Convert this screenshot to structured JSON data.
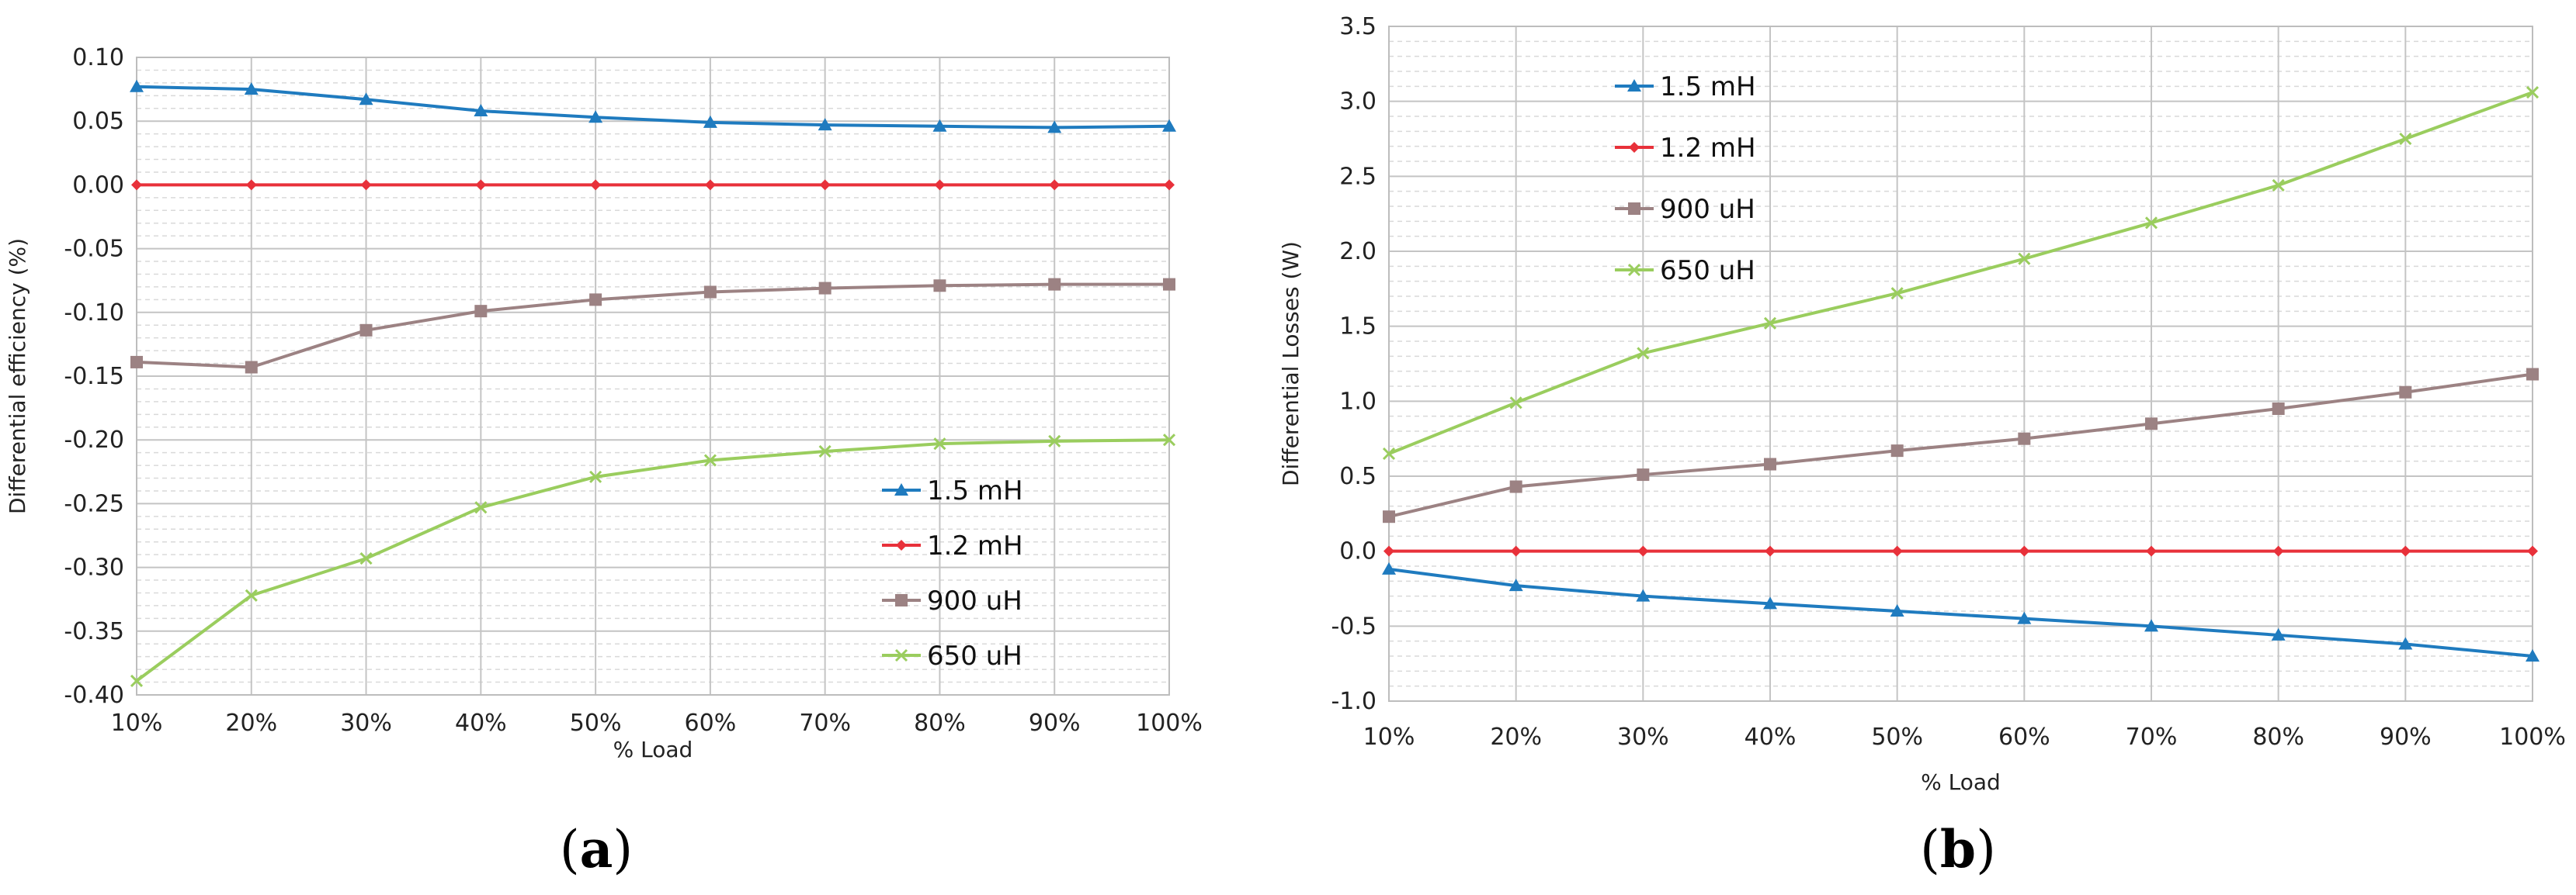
{
  "chart_data": [
    {
      "type": "line",
      "panel_label": "a",
      "xlabel": "% Load",
      "ylabel": "Differential efficiency (%)",
      "categories": [
        "10%",
        "20%",
        "30%",
        "40%",
        "50%",
        "60%",
        "70%",
        "80%",
        "90%",
        "100%"
      ],
      "ylim": [
        -0.4,
        0.1
      ],
      "yticks": [
        0.1,
        0.05,
        0.0,
        -0.05,
        -0.1,
        -0.15,
        -0.2,
        -0.25,
        -0.3,
        -0.35,
        -0.4
      ],
      "ytick_labels": [
        "0.10",
        "0.05",
        "0.00",
        "-0.05",
        "-0.10",
        "-0.15",
        "-0.20",
        "-0.25",
        "-0.30",
        "-0.35",
        "-0.40"
      ],
      "grid": true,
      "legend_position": "lower-right",
      "series": [
        {
          "name": "1.5 mH",
          "color": "#1f7bbf",
          "marker": "triangle",
          "values": [
            0.077,
            0.075,
            0.067,
            0.058,
            0.053,
            0.049,
            0.047,
            0.046,
            0.045,
            0.046
          ]
        },
        {
          "name": "1.2 mH",
          "color": "#e8313a",
          "marker": "diamond",
          "values": [
            0.0,
            0.0,
            0.0,
            0.0,
            0.0,
            0.0,
            0.0,
            0.0,
            0.0,
            0.0
          ]
        },
        {
          "name": "900 uH",
          "color": "#9c8283",
          "marker": "square",
          "values": [
            -0.139,
            -0.143,
            -0.114,
            -0.099,
            -0.09,
            -0.084,
            -0.081,
            -0.079,
            -0.078,
            -0.078
          ]
        },
        {
          "name": "650 uH",
          "color": "#9acd5e",
          "marker": "x",
          "values": [
            -0.389,
            -0.322,
            -0.293,
            -0.253,
            -0.229,
            -0.216,
            -0.209,
            -0.203,
            -0.201,
            -0.2
          ]
        }
      ]
    },
    {
      "type": "line",
      "panel_label": "b",
      "xlabel": "% Load",
      "ylabel": "Differential Losses (W)",
      "categories": [
        "10%",
        "20%",
        "30%",
        "40%",
        "50%",
        "60%",
        "70%",
        "80%",
        "90%",
        "100%"
      ],
      "ylim": [
        -1.0,
        3.5
      ],
      "yticks": [
        3.5,
        3.0,
        2.5,
        2.0,
        1.5,
        1.0,
        0.5,
        0.0,
        -0.5,
        -1.0
      ],
      "ytick_labels": [
        "3.5",
        "3.0",
        "2.5",
        "2.0",
        "1.5",
        "1.0",
        "0.5",
        "0.0",
        "-0.5",
        "-1.0"
      ],
      "grid": true,
      "legend_position": "top-left",
      "series": [
        {
          "name": "1.5 mH",
          "color": "#1f7bbf",
          "marker": "triangle",
          "values": [
            -0.12,
            -0.23,
            -0.3,
            -0.35,
            -0.4,
            -0.45,
            -0.5,
            -0.56,
            -0.62,
            -0.7
          ]
        },
        {
          "name": "1.2 mH",
          "color": "#e8313a",
          "marker": "diamond",
          "values": [
            0.0,
            0.0,
            0.0,
            0.0,
            0.0,
            0.0,
            0.0,
            0.0,
            0.0,
            0.0
          ]
        },
        {
          "name": "900 uH",
          "color": "#9c8283",
          "marker": "square",
          "values": [
            0.23,
            0.43,
            0.51,
            0.58,
            0.67,
            0.75,
            0.85,
            0.95,
            1.06,
            1.18
          ]
        },
        {
          "name": "650 uH",
          "color": "#9acd5e",
          "marker": "x",
          "values": [
            0.65,
            0.99,
            1.32,
            1.52,
            1.72,
            1.95,
            2.19,
            2.44,
            2.75,
            3.06
          ]
        }
      ]
    }
  ]
}
